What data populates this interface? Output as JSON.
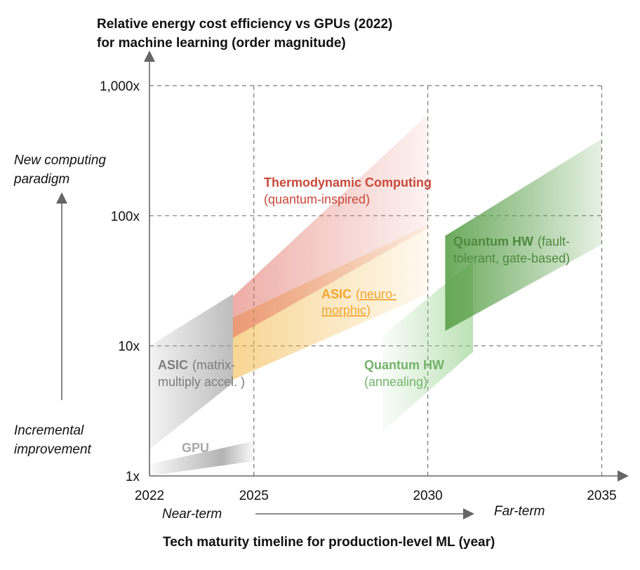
{
  "chart_data": {
    "type": "area",
    "title": [
      "Relative energy cost efficiency vs GPUs (2022)",
      "for machine learning (order magnitude)"
    ],
    "xlabel": "Tech maturity timeline for production-level ML (year)",
    "x_ticks": [
      "2022",
      "2025",
      "2030",
      "2035"
    ],
    "y_ticks": [
      "1x",
      "10x",
      "100x",
      "1,000x"
    ],
    "xlim": [
      2022,
      2035.5
    ],
    "ylim": [
      1,
      1000
    ],
    "y_scale": "log",
    "grid": true,
    "y_annotations": {
      "top": [
        "New computing",
        "paradigm"
      ],
      "bottom": [
        "Incremental",
        "improvement"
      ]
    },
    "x_annotations": {
      "left": "Near-term",
      "right": "Far-term"
    },
    "colors": {
      "gpu": "#9a9a9a",
      "asic_matrix": "#9a9a9a",
      "asic_neuro": "#f2b33a",
      "thermodynamic": "#c8493b",
      "quantum_annealing": "#73b36a",
      "quantum_fault_tolerant": "#4f8a3f"
    },
    "series": [
      {
        "key": "gpu",
        "label_bold": "GPU",
        "label_rest": "",
        "x": [
          2022,
          2025
        ],
        "lower": [
          1.0,
          1.3
        ],
        "upper": [
          1.23,
          1.85
        ],
        "fade": "left"
      },
      {
        "key": "asic_matrix",
        "label_bold": "ASIC",
        "label_rest": "(matrix-multiply accel. )",
        "x": [
          2022,
          2024.4
        ],
        "lower": [
          1.6,
          5.2
        ],
        "upper": [
          10.0,
          25.0
        ],
        "fade": "right"
      },
      {
        "key": "asic_neuro",
        "label_bold": "ASIC",
        "label_rest": "(neuro-morphic)",
        "x": [
          2024.4,
          2030
        ],
        "lower": [
          5.5,
          25.0
        ],
        "upper": [
          16.5,
          85.0
        ],
        "fade": "right"
      },
      {
        "key": "thermodynamic",
        "label_bold": "Thermodynamic Computing",
        "label_rest": "(quantum-inspired)",
        "x": [
          2024.4,
          2030
        ],
        "lower": [
          11.5,
          80.0
        ],
        "upper": [
          24.0,
          600.0
        ],
        "fade": "right"
      },
      {
        "key": "quantum_annealing",
        "label_bold": "Quantum HW",
        "label_rest": "(annealing)",
        "x": [
          2028.7,
          2031.3
        ],
        "lower": [
          2.2,
          9.0
        ],
        "upper": [
          12.0,
          45.0
        ],
        "fade": "left"
      },
      {
        "key": "quantum_fault_tolerant",
        "label_bold": "Quantum HW",
        "label_rest": "(fault-tolerant, gate-based)",
        "x": [
          2030.5,
          2035
        ],
        "lower": [
          13.0,
          60.0
        ],
        "upper": [
          70.0,
          390.0
        ],
        "fade": "right"
      }
    ]
  }
}
